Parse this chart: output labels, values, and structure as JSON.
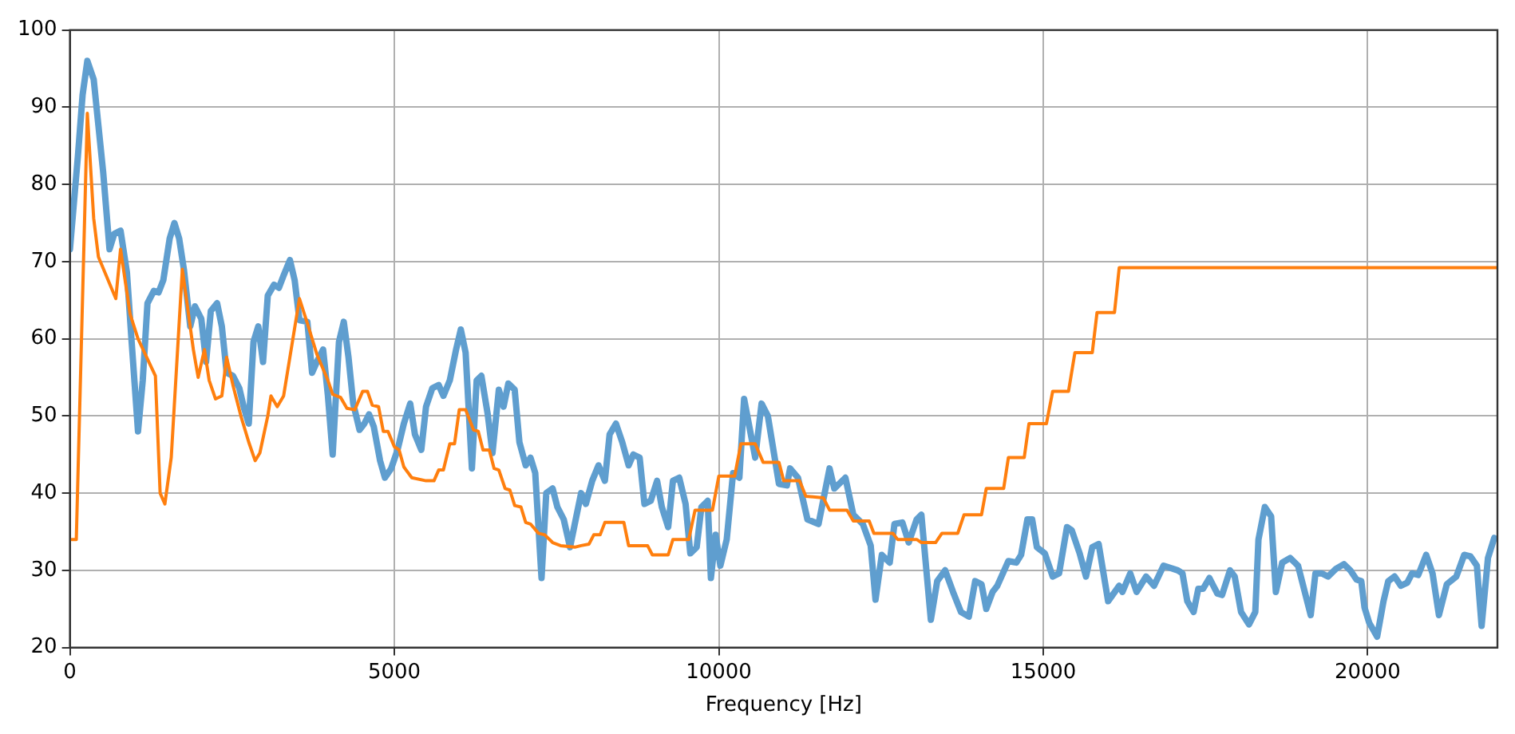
{
  "chart_data": {
    "type": "line",
    "xlabel": "Frequency [Hz]",
    "xlim": [
      0,
      22000
    ],
    "ylim": [
      20,
      100
    ],
    "xticks": [
      0,
      5000,
      10000,
      15000,
      20000
    ],
    "yticks": [
      20,
      30,
      40,
      50,
      60,
      70,
      80,
      90,
      100
    ],
    "grid": true,
    "legend": false,
    "marker": "none",
    "line_style": "solid",
    "series": [
      {
        "color": "#5f9ecf",
        "x": [
          0,
          122,
          195,
          268,
          366,
          439,
          512,
          610,
          683,
          780,
          878,
          951,
          1049,
          1122,
          1195,
          1293,
          1366,
          1439,
          1537,
          1610,
          1683,
          1756,
          1854,
          1927,
          2024,
          2098,
          2171,
          2268,
          2341,
          2415,
          2512,
          2610,
          2683,
          2756,
          2829,
          2902,
          2976,
          3049,
          3146,
          3220,
          3293,
          3390,
          3463,
          3537,
          3659,
          3732,
          3805,
          3902,
          3976,
          4049,
          4146,
          4220,
          4293,
          4366,
          4463,
          4537,
          4610,
          4683,
          4780,
          4854,
          4951,
          5049,
          5146,
          5244,
          5317,
          5415,
          5488,
          5585,
          5683,
          5756,
          5854,
          5951,
          6024,
          6098,
          6195,
          6268,
          6341,
          6439,
          6512,
          6610,
          6683,
          6756,
          6854,
          6927,
          7024,
          7098,
          7171,
          7268,
          7341,
          7439,
          7512,
          7610,
          7707,
          7878,
          7951,
          8049,
          8146,
          8244,
          8317,
          8415,
          8512,
          8610,
          8683,
          8780,
          8854,
          8951,
          9049,
          9122,
          9220,
          9293,
          9390,
          9488,
          9561,
          9659,
          9732,
          9829,
          9878,
          9951,
          10024,
          10122,
          10220,
          10317,
          10390,
          10561,
          10659,
          10756,
          10927,
          11049,
          11098,
          11220,
          11366,
          11537,
          11707,
          11780,
          11951,
          12073,
          12220,
          12341,
          12415,
          12512,
          12634,
          12707,
          12829,
          12927,
          13049,
          13122,
          13268,
          13366,
          13488,
          13610,
          13732,
          13854,
          13951,
          14049,
          14122,
          14220,
          14293,
          14463,
          14585,
          14659,
          14756,
          14829,
          14902,
          15024,
          15146,
          15244,
          15366,
          15439,
          15561,
          15659,
          15756,
          15854,
          16000,
          16171,
          16220,
          16341,
          16439,
          16585,
          16707,
          16854,
          17073,
          17146,
          17220,
          17317,
          17390,
          17463,
          17561,
          17683,
          17756,
          17878,
          17951,
          18049,
          18171,
          18268,
          18317,
          18415,
          18512,
          18585,
          18683,
          18805,
          18927,
          19122,
          19195,
          19293,
          19390,
          19512,
          19634,
          19732,
          19829,
          19902,
          19951,
          20024,
          20146,
          20244,
          20317,
          20415,
          20512,
          20610,
          20683,
          20780,
          20902,
          21000,
          21098,
          21220,
          21366,
          21488,
          21585,
          21683,
          21756,
          21854,
          21951
        ],
        "values": [
          71.6,
          83.6,
          91.6,
          96,
          93.6,
          87.6,
          81.6,
          71.6,
          73.6,
          74,
          68.6,
          59.6,
          48,
          54.6,
          64.6,
          66.2,
          66,
          67.6,
          73,
          75,
          73,
          69,
          61.6,
          64.2,
          62.6,
          57,
          63.6,
          64.6,
          61.6,
          55.6,
          55.2,
          53.6,
          51,
          49,
          59.6,
          61.6,
          57,
          65.6,
          67,
          66.6,
          68.2,
          70.2,
          67.6,
          62.4,
          62.2,
          55.6,
          57,
          58.6,
          52.6,
          45,
          59.6,
          62.2,
          57.6,
          51.6,
          48.2,
          49,
          50.2,
          48.6,
          44.2,
          42,
          43.2,
          45.6,
          49,
          51.6,
          47.6,
          45.6,
          51.2,
          53.6,
          54,
          52.6,
          54.6,
          58.6,
          61.2,
          58.2,
          43.2,
          54.6,
          55.2,
          50.2,
          45.2,
          53.4,
          51.2,
          54.2,
          53.4,
          46.6,
          43.6,
          44.6,
          42.6,
          29,
          40,
          40.6,
          38.2,
          36.6,
          33,
          40,
          38.6,
          41.6,
          43.6,
          41.6,
          47.6,
          49,
          46.6,
          43.6,
          45,
          44.6,
          38.6,
          39,
          41.6,
          38.2,
          35.6,
          41.6,
          42,
          38.6,
          32.2,
          33,
          38.2,
          39,
          29,
          34.6,
          30.6,
          34,
          42.6,
          42,
          52.2,
          44.6,
          51.6,
          50,
          41.2,
          41,
          43.2,
          42,
          36.6,
          36,
          43.2,
          40.6,
          42,
          37.2,
          36,
          33.2,
          26.2,
          32,
          31,
          36,
          36.2,
          33.6,
          36.6,
          37.2,
          23.6,
          28.6,
          30,
          27.2,
          24.6,
          24,
          28.6,
          28.2,
          25,
          27.2,
          28,
          31.2,
          31,
          32,
          36.6,
          36.6,
          33,
          32.2,
          29.2,
          29.6,
          35.6,
          35.2,
          32.2,
          29.2,
          33,
          33.4,
          26,
          28,
          27.2,
          29.6,
          27.2,
          29.2,
          28,
          30.6,
          30,
          29.6,
          26,
          24.6,
          27.6,
          27.6,
          29,
          27,
          26.8,
          30,
          29.2,
          24.6,
          23,
          24.6,
          34,
          38.2,
          37,
          27.2,
          31,
          31.6,
          30.6,
          24.2,
          29.6,
          29.6,
          29.2,
          30.2,
          30.8,
          30,
          28.8,
          28.6,
          25.2,
          23.2,
          21.4,
          26,
          28.6,
          29.2,
          28,
          28.4,
          29.6,
          29.4,
          32,
          29.6,
          24.2,
          28.2,
          29.2,
          32,
          31.8,
          30.6,
          22.8,
          31.6,
          34.2
        ]
      },
      {
        "color": "#ff7f0e",
        "x": [
          24,
          98,
          268,
          366,
          439,
          707,
          780,
          927,
          1049,
          1317,
          1390,
          1463,
          1561,
          1732,
          1902,
          1976,
          2073,
          2146,
          2244,
          2341,
          2415,
          2512,
          2634,
          2756,
          2854,
          2927,
          3049,
          3098,
          3195,
          3293,
          3537,
          3659,
          3805,
          3976,
          4049,
          4171,
          4268,
          4390,
          4512,
          4585,
          4659,
          4756,
          4829,
          4902,
          5000,
          5073,
          5146,
          5268,
          5488,
          5610,
          5683,
          5756,
          5854,
          5927,
          6000,
          6098,
          6220,
          6293,
          6366,
          6463,
          6537,
          6610,
          6707,
          6780,
          6854,
          6951,
          7024,
          7098,
          7220,
          7317,
          7439,
          7561,
          7780,
          7878,
          8000,
          8073,
          8171,
          8244,
          8537,
          8610,
          8902,
          8976,
          9220,
          9293,
          9537,
          9634,
          9902,
          10000,
          10244,
          10341,
          10561,
          10683,
          10927,
          11000,
          11244,
          11341,
          11610,
          11707,
          11976,
          12073,
          12317,
          12390,
          12683,
          12756,
          13049,
          13122,
          13341,
          13439,
          13683,
          13780,
          14049,
          14122,
          14390,
          14463,
          14707,
          14780,
          15049,
          15146,
          15390,
          15488,
          15756,
          15829,
          16098,
          16171,
          22000
        ],
        "values": [
          34,
          34,
          89.2,
          75.6,
          70.6,
          65.2,
          71.6,
          63.2,
          60,
          55.2,
          40,
          38.6,
          44.6,
          69,
          58.6,
          55,
          58.6,
          54.6,
          52.2,
          52.6,
          57.6,
          54,
          50,
          46.6,
          44.2,
          45.2,
          50,
          52.6,
          51.2,
          52.6,
          65.2,
          62,
          58,
          54.6,
          52.8,
          52.4,
          51,
          50.8,
          53.2,
          53.2,
          51.4,
          51.2,
          48,
          48,
          46,
          45.6,
          43.4,
          42,
          41.6,
          41.6,
          43,
          43,
          46.4,
          46.4,
          50.8,
          50.8,
          48.2,
          48,
          45.6,
          45.6,
          43.2,
          43,
          40.6,
          40.4,
          38.4,
          38.2,
          36.2,
          36,
          34.8,
          34.6,
          33.6,
          33.2,
          33,
          33.2,
          33.4,
          34.6,
          34.6,
          36.2,
          36.2,
          33.2,
          33.2,
          32,
          32,
          34,
          34,
          37.8,
          37.8,
          42.2,
          42.2,
          46.4,
          46.4,
          44,
          44,
          41.6,
          41.6,
          39.6,
          39.4,
          37.8,
          37.8,
          36.4,
          36.4,
          34.8,
          34.8,
          34,
          34,
          33.6,
          33.6,
          34.8,
          34.8,
          37.2,
          37.2,
          40.6,
          40.6,
          44.6,
          44.6,
          49,
          49,
          53.2,
          53.2,
          58.2,
          58.2,
          63.4,
          63.4,
          69.2,
          69.2
        ]
      }
    ]
  }
}
